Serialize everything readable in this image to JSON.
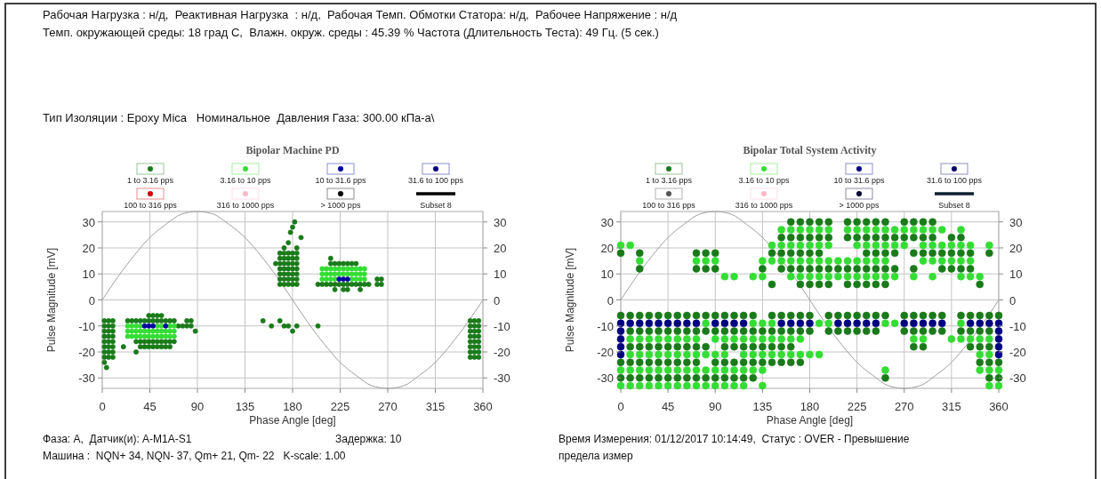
{
  "chart_data": [
    {
      "type": "other",
      "annotations": [
        "Рабочая Нагрузка : н/д,  Реактивная Нагрузка  : н/д,  Рабочая Темп. Обмотки Статора: н/д,  Рабочее Напряжение : н/д",
        "Темп. окружающей среды: 18 град С,  Влажн. окруж. среды : 45.39 % Частота (Длительность Теста): 49 Гц. (5 сек.)",
        "Тип Изоляции : Epoxy Mica   Номинальное  Давления Газа: 300.00 кПа-а\\"
      ]
    },
    {
      "type": "scatter",
      "title": "Bipolar Machine PD",
      "xlabel": "Phase Angle [deg]",
      "ylabel": "Pulse Magnitude [mV]",
      "xlim": [
        0,
        360
      ],
      "xticks": [
        0,
        45,
        90,
        135,
        180,
        225,
        270,
        315,
        360
      ],
      "ylim": [
        -34,
        34
      ],
      "yticks": [
        -30,
        -20,
        -10,
        0,
        10,
        20,
        30
      ],
      "y2lim": [
        -34,
        34
      ],
      "y2ticks": [
        -30,
        -20,
        -10,
        0,
        10,
        20,
        30
      ],
      "grid": true,
      "legend": "top",
      "marker": "circle",
      "annotations": [
        "Фаза: A,  Датчик(и): A-M1A-S1",
        "Задержка: 10",
        "Машина :  NQN+ 34, NQN- 37, Qm+ 21, Qm- 22   K-scale: 1.00"
      ],
      "series": [
        {
          "type": "line",
          "marker": "none",
          "color": "#a0a0a0",
          "x": [
            0,
            15,
            30,
            45,
            60,
            75,
            90,
            105,
            120,
            135,
            150,
            165,
            180,
            195,
            210,
            225,
            240,
            255,
            270,
            285,
            300,
            315,
            330,
            345,
            360
          ],
          "values": [
            0,
            9,
            17,
            24,
            29,
            33,
            34,
            33,
            29,
            24,
            17,
            9,
            0,
            -9,
            -17,
            -24,
            -29,
            -33,
            -34,
            -33,
            -29,
            -24,
            -17,
            -9,
            0
          ]
        },
        {
          "name": "1 to 3.16 pps",
          "color": "#1a7a1a",
          "x": [
            2,
            6,
            10,
            2,
            6,
            10,
            2,
            6,
            10,
            2,
            6,
            10,
            2,
            6,
            10,
            2,
            6,
            10,
            2,
            6,
            10,
            2,
            6,
            10,
            2,
            4,
            24,
            28,
            32,
            36,
            40,
            44,
            48,
            52,
            56,
            60,
            64,
            68,
            32,
            36,
            40,
            44,
            48,
            52,
            56,
            60,
            64,
            68,
            36,
            40,
            44,
            48,
            52,
            56,
            60,
            64,
            20,
            32,
            44,
            48,
            52,
            56,
            72,
            76,
            80,
            84,
            80,
            84,
            88,
            152,
            160,
            168,
            172,
            176,
            180,
            184,
            204,
            168,
            172,
            176,
            180,
            184,
            168,
            172,
            176,
            180,
            184,
            168,
            172,
            176,
            180,
            184,
            168,
            172,
            176,
            180,
            184,
            168,
            172,
            176,
            180,
            184,
            168,
            172,
            176,
            180,
            184,
            168,
            172,
            176,
            180,
            184,
            172,
            176,
            178,
            180,
            182,
            188,
            184,
            164,
            204,
            208,
            212,
            216,
            220,
            224,
            228,
            232,
            236,
            240,
            244,
            248,
            252,
            216,
            220,
            224,
            228,
            232,
            236,
            240,
            216,
            220,
            228,
            232,
            244,
            260,
            264,
            260,
            264,
            348,
            352,
            356,
            348,
            352,
            356,
            348,
            352,
            356,
            348,
            352,
            356,
            348,
            352,
            356,
            348,
            352,
            356,
            348,
            352,
            356,
            348,
            352,
            356
          ],
          "values": [
            -8,
            -8,
            -8,
            -10,
            -10,
            -10,
            -12,
            -12,
            -12,
            -14,
            -14,
            -14,
            -16,
            -16,
            -16,
            -18,
            -18,
            -18,
            -20,
            -20,
            -20,
            -22,
            -22,
            -22,
            -24,
            -26,
            -8,
            -8,
            -8,
            -8,
            -8,
            -8,
            -8,
            -8,
            -8,
            -8,
            -8,
            -8,
            -16,
            -16,
            -16,
            -16,
            -16,
            -16,
            -16,
            -16,
            -16,
            -16,
            -18,
            -18,
            -18,
            -18,
            -18,
            -18,
            -18,
            -18,
            -18,
            -20,
            -6,
            -6,
            -6,
            -6,
            -10,
            -10,
            -8,
            -8,
            -10,
            -10,
            -12,
            -8,
            -10,
            -8,
            -10,
            -10,
            -12,
            -10,
            -10,
            6,
            6,
            6,
            6,
            6,
            8,
            8,
            8,
            8,
            8,
            10,
            10,
            10,
            10,
            10,
            12,
            12,
            12,
            12,
            12,
            14,
            14,
            14,
            14,
            14,
            16,
            16,
            16,
            16,
            16,
            18,
            18,
            18,
            18,
            18,
            20,
            22,
            26,
            28,
            30,
            24,
            20,
            14,
            6,
            6,
            6,
            6,
            6,
            6,
            6,
            6,
            6,
            6,
            6,
            6,
            6,
            14,
            14,
            14,
            14,
            14,
            14,
            14,
            16,
            4,
            4,
            4,
            4,
            8,
            8,
            6,
            6,
            -8,
            -8,
            -8,
            -10,
            -10,
            -10,
            -12,
            -12,
            -12,
            -14,
            -14,
            -14,
            -16,
            -16,
            -16,
            -18,
            -18,
            -18,
            -20,
            -20,
            -20,
            -22,
            -22,
            -22
          ]
        },
        {
          "name": "3.16 to 10 pps",
          "color": "#33dd33",
          "x": [
            24,
            28,
            32,
            36,
            52,
            56,
            64,
            68,
            24,
            28,
            32,
            36,
            40,
            44,
            48,
            52,
            56,
            60,
            64,
            68,
            24,
            28,
            32,
            36,
            40,
            44,
            48,
            52,
            56,
            60,
            64,
            68,
            208,
            212,
            216,
            220,
            236,
            240,
            244,
            248,
            208,
            212,
            216,
            220,
            224,
            228,
            232,
            236,
            240,
            244,
            248,
            208,
            212,
            216,
            220,
            224,
            228,
            232,
            236,
            240,
            244,
            248
          ],
          "values": [
            -10,
            -10,
            -10,
            -10,
            -10,
            -10,
            -10,
            -10,
            -12,
            -12,
            -12,
            -12,
            -12,
            -12,
            -12,
            -12,
            -12,
            -12,
            -12,
            -12,
            -14,
            -14,
            -14,
            -14,
            -14,
            -14,
            -14,
            -14,
            -14,
            -14,
            -14,
            -14,
            8,
            8,
            8,
            8,
            8,
            8,
            8,
            8,
            10,
            10,
            10,
            10,
            10,
            10,
            10,
            10,
            10,
            10,
            10,
            12,
            12,
            12,
            12,
            12,
            12,
            12,
            12,
            12,
            12,
            12
          ]
        },
        {
          "name": "10 to 31.6 pps",
          "color": "#0000a0",
          "x": [
            40,
            44,
            48,
            60,
            224,
            228,
            232
          ],
          "values": [
            -10,
            -10,
            -10,
            -10,
            8,
            8,
            8
          ]
        },
        {
          "name": "31.6 to 100 pps",
          "color": "#000080"
        },
        {
          "name": "100 to 316 pps",
          "color": "#cc0000"
        },
        {
          "name": "316 to 1000 pps",
          "color": "#ffb6c8"
        },
        {
          "name": "> 1000 pps",
          "color": "#000000"
        },
        {
          "name": "Subset 8",
          "type": "line",
          "color": "#000000"
        }
      ]
    },
    {
      "type": "scatter",
      "title": "Bipolar Total System Activity",
      "xlabel": "Phase Angle [deg]",
      "ylabel": "Pulse Magnitude [mV]",
      "xlim": [
        0,
        360
      ],
      "xticks": [
        0,
        45,
        90,
        135,
        180,
        225,
        270,
        315,
        360
      ],
      "ylim": [
        -34,
        34
      ],
      "yticks": [
        -30,
        -20,
        -10,
        0,
        10,
        20,
        30
      ],
      "y2lim": [
        -34,
        34
      ],
      "y2ticks": [
        -30,
        -20,
        -10,
        0,
        10,
        20,
        30
      ],
      "grid": true,
      "legend": "top",
      "marker": "circle",
      "annotations": [
        "Время Измерения: 01/12/2017 10:14:49,  Статус : OVER - Превышение",
        "предела измер"
      ],
      "series": [
        {
          "type": "line",
          "marker": "none",
          "color": "#a0a0a0",
          "x": [
            0,
            15,
            30,
            45,
            60,
            75,
            90,
            105,
            120,
            135,
            150,
            165,
            180,
            195,
            210,
            225,
            240,
            255,
            270,
            285,
            300,
            315,
            330,
            345,
            360
          ],
          "values": [
            0,
            9,
            17,
            24,
            29,
            33,
            34,
            33,
            29,
            24,
            17,
            9,
            0,
            -9,
            -17,
            -24,
            -29,
            -33,
            -34,
            -33,
            -29,
            -24,
            -17,
            -9,
            0
          ]
        },
        {
          "name": "1 to 3.16 pps",
          "color": "#1a7a1a",
          "x": [
            162,
            171,
            180,
            189,
            198,
            216,
            225,
            234,
            243,
            252,
            270,
            279,
            288,
            297,
            153,
            162,
            171,
            180,
            189,
            198,
            216,
            225,
            234,
            243,
            252,
            261,
            270,
            279,
            288,
            297,
            315,
            324,
            0,
            18,
            72,
            81,
            90,
            144,
            153,
            162,
            171,
            180,
            189,
            234,
            243,
            252,
            261,
            279,
            288,
            297,
            306,
            315,
            324,
            333,
            351,
            18,
            72,
            81,
            90,
            135,
            153,
            162,
            171,
            180,
            189,
            198,
            207,
            216,
            225,
            234,
            243,
            252,
            261,
            279,
            306,
            315,
            324,
            333,
            144,
            171,
            180,
            189,
            198,
            216,
            225,
            234,
            243,
            252,
            342,
            0,
            9,
            18,
            27,
            36,
            45,
            54,
            63,
            72,
            81,
            90,
            99,
            108,
            117,
            126,
            144,
            153,
            162,
            171,
            180,
            198,
            207,
            216,
            225,
            234,
            243,
            252,
            270,
            279,
            288,
            297,
            306,
            324,
            333,
            342,
            351,
            360,
            9,
            18,
            27,
            36,
            45,
            54,
            63,
            72,
            81,
            90,
            99,
            108,
            117,
            126,
            135,
            144,
            153,
            162,
            171,
            180,
            198,
            207,
            216,
            225,
            234,
            243,
            270,
            279,
            288,
            297,
            306,
            324,
            333,
            342,
            351,
            9,
            18,
            27,
            36,
            45,
            54,
            63,
            72,
            81,
            99,
            108,
            117,
            126,
            135,
            144,
            153,
            162,
            279,
            288,
            333,
            342,
            351,
            0,
            9,
            18,
            27,
            36,
            45,
            54,
            63,
            72,
            90,
            99,
            108,
            117,
            126,
            135,
            144,
            153,
            162,
            171,
            342,
            351,
            360,
            0,
            9,
            18,
            27,
            36,
            45,
            54,
            63,
            72,
            81,
            90,
            99,
            108,
            117,
            126,
            252,
            351,
            360
          ],
          "values": [
            30,
            30,
            30,
            30,
            30,
            30,
            30,
            30,
            30,
            30,
            30,
            30,
            30,
            30,
            24,
            24,
            24,
            24,
            24,
            24,
            24,
            24,
            24,
            24,
            24,
            24,
            24,
            24,
            24,
            24,
            24,
            24,
            18,
            18,
            18,
            18,
            18,
            18,
            18,
            18,
            18,
            18,
            18,
            18,
            18,
            18,
            18,
            18,
            18,
            18,
            18,
            18,
            18,
            18,
            18,
            12,
            12,
            12,
            12,
            12,
            12,
            12,
            12,
            12,
            12,
            12,
            12,
            12,
            12,
            12,
            12,
            12,
            12,
            12,
            12,
            12,
            12,
            12,
            6,
            6,
            6,
            6,
            6,
            6,
            6,
            6,
            6,
            6,
            6,
            -6,
            -6,
            -6,
            -6,
            -6,
            -6,
            -6,
            -6,
            -6,
            -6,
            -6,
            -6,
            -6,
            -6,
            -6,
            -6,
            -6,
            -6,
            -6,
            -6,
            -6,
            -6,
            -6,
            -6,
            -6,
            -6,
            -6,
            -6,
            -6,
            -6,
            -6,
            -6,
            -6,
            -6,
            -6,
            -6,
            -6,
            -12,
            -12,
            -12,
            -12,
            -12,
            -12,
            -12,
            -12,
            -12,
            -12,
            -12,
            -12,
            -12,
            -12,
            -12,
            -12,
            -12,
            -12,
            -12,
            -12,
            -12,
            -12,
            -12,
            -12,
            -12,
            -12,
            -12,
            -12,
            -12,
            -12,
            -12,
            -12,
            -12,
            -12,
            -12,
            -18,
            -18,
            -18,
            -18,
            -18,
            -18,
            -18,
            -18,
            -18,
            -18,
            -18,
            -18,
            -18,
            -18,
            -18,
            -18,
            -18,
            -18,
            -18,
            -18,
            -18,
            -18,
            -24,
            -24,
            -24,
            -24,
            -24,
            -24,
            -24,
            -24,
            -24,
            -24,
            -24,
            -24,
            -24,
            -24,
            -24,
            -24,
            -24,
            -24,
            -24,
            -24,
            -24,
            -24,
            -30,
            -30,
            -30,
            -30,
            -30,
            -30,
            -30,
            -30,
            -30,
            -30,
            -30,
            -30,
            -30,
            -30,
            -30,
            -30,
            -30,
            -30
          ]
        },
        {
          "name": "3.16 to 10 pps",
          "color": "#33dd33",
          "x": [
            153,
            162,
            171,
            180,
            189,
            198,
            216,
            225,
            234,
            243,
            252,
            261,
            270,
            279,
            288,
            297,
            306,
            324,
            0,
            9,
            144,
            153,
            162,
            171,
            180,
            189,
            198,
            225,
            234,
            243,
            252,
            261,
            270,
            288,
            297,
            306,
            315,
            324,
            333,
            351,
            18,
            72,
            81,
            90,
            135,
            144,
            153,
            162,
            171,
            180,
            189,
            198,
            207,
            216,
            225,
            234,
            243,
            252,
            288,
            297,
            306,
            315,
            324,
            333,
            99,
            108,
            126,
            135,
            162,
            171,
            180,
            189,
            198,
            207,
            216,
            225,
            234,
            243,
            252,
            261,
            279,
            297,
            324,
            333,
            342,
            81,
            126,
            135,
            144,
            189,
            198,
            252,
            261,
            324,
            9,
            18,
            27,
            36,
            45,
            54,
            63,
            72,
            90,
            99,
            108,
            117,
            126,
            135,
            144,
            153,
            162,
            171,
            279,
            288,
            315,
            324,
            333,
            342,
            351,
            9,
            18,
            27,
            36,
            45,
            54,
            63,
            72,
            81,
            90,
            99,
            117,
            126,
            135,
            144,
            153,
            162,
            171,
            180,
            189,
            342,
            351,
            0,
            9,
            18,
            27,
            36,
            45,
            54,
            63,
            72,
            81,
            90,
            99,
            108,
            117,
            126,
            135,
            252,
            342,
            351,
            360,
            0,
            9,
            18,
            27,
            36,
            45,
            54,
            63,
            72,
            81,
            90,
            99,
            108,
            117,
            135,
            351,
            360
          ],
          "values": [
            27,
            27,
            27,
            27,
            27,
            27,
            27,
            27,
            27,
            27,
            27,
            27,
            27,
            27,
            27,
            27,
            27,
            27,
            21,
            21,
            21,
            21,
            21,
            21,
            21,
            21,
            21,
            21,
            21,
            21,
            21,
            21,
            21,
            21,
            21,
            21,
            21,
            21,
            21,
            21,
            15,
            15,
            15,
            15,
            15,
            15,
            15,
            15,
            15,
            15,
            15,
            15,
            15,
            15,
            15,
            15,
            15,
            15,
            15,
            15,
            15,
            15,
            15,
            15,
            9,
            9,
            9,
            9,
            9,
            9,
            9,
            9,
            9,
            9,
            9,
            9,
            9,
            9,
            9,
            9,
            9,
            9,
            9,
            9,
            9,
            -9,
            -9,
            -9,
            -9,
            -9,
            -9,
            -9,
            -9,
            -9,
            -15,
            -15,
            -15,
            -15,
            -15,
            -15,
            -15,
            -15,
            -15,
            -15,
            -15,
            -15,
            -15,
            -15,
            -15,
            -15,
            -15,
            -15,
            -15,
            -15,
            -15,
            -15,
            -15,
            -15,
            -15,
            -21,
            -21,
            -21,
            -21,
            -21,
            -21,
            -21,
            -21,
            -21,
            -21,
            -21,
            -21,
            -21,
            -21,
            -21,
            -21,
            -21,
            -21,
            -21,
            -21,
            -21,
            -21,
            -27,
            -27,
            -27,
            -27,
            -27,
            -27,
            -27,
            -27,
            -27,
            -27,
            -27,
            -27,
            -27,
            -27,
            -27,
            -27,
            -27,
            -27,
            -27,
            -27,
            -33,
            -33,
            -33,
            -33,
            -33,
            -33,
            -33,
            -33,
            -33,
            -33,
            -33,
            -33,
            -33,
            -33,
            -33,
            -33,
            -33
          ]
        },
        {
          "name": "10 to 31.6 pps",
          "color": "#000080",
          "x": [
            0,
            9,
            18,
            27,
            36,
            45,
            54,
            63,
            72,
            90,
            99,
            108,
            117,
            153,
            162,
            171,
            180,
            207,
            216,
            225,
            234,
            243,
            270,
            279,
            288,
            297,
            306,
            333,
            342,
            351,
            360,
            0,
            360,
            0,
            360,
            0,
            360,
            0,
            360
          ],
          "values": [
            -9,
            -9,
            -9,
            -9,
            -9,
            -9,
            -9,
            -9,
            -9,
            -9,
            -9,
            -9,
            -9,
            -9,
            -9,
            -9,
            -9,
            -9,
            -9,
            -9,
            -9,
            -9,
            -9,
            -9,
            -9,
            -9,
            -9,
            -9,
            -9,
            -9,
            -9,
            -12,
            -12,
            -15,
            -15,
            -18,
            -18,
            -21,
            -21
          ]
        },
        {
          "name": "31.6 to 100 pps",
          "color": "#000066"
        },
        {
          "name": "100 to 316 pps",
          "color": "#555555"
        },
        {
          "name": "316 to 1000 pps",
          "color": "#ffb6c8"
        },
        {
          "name": "> 1000 pps",
          "color": "#000033"
        },
        {
          "name": "Subset 8",
          "type": "line",
          "color": "#102030"
        }
      ]
    }
  ]
}
